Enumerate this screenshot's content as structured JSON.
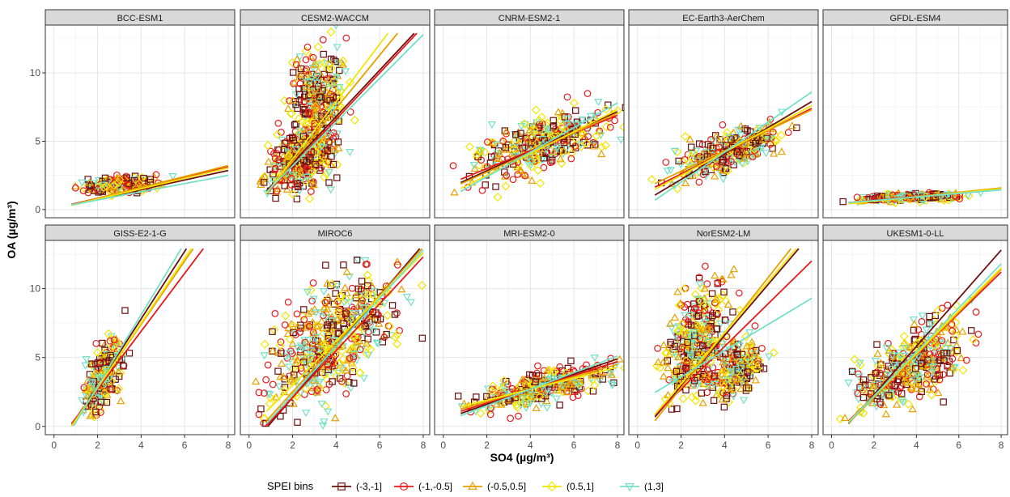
{
  "chart_data": {
    "type": "scatter",
    "facet_titles": [
      "BCC-ESM1",
      "CESM2-WACCM",
      "CNRM-ESM2-1",
      "EC-Earth3-AerChem",
      "GFDL-ESM4",
      "GISS-E2-1-G",
      "MIROC6",
      "MRI-ESM2-0",
      "NorESM2-LM",
      "UKESM1-0-LL"
    ],
    "xlabel": "SO4 (µg/m³)",
    "ylabel": "OA (µg/m³)",
    "xlim": [
      -0.4,
      8.3
    ],
    "xticks": [
      0,
      2,
      4,
      6,
      8
    ],
    "ylim": [
      -0.6,
      13.5
    ],
    "yticks": [
      0,
      5,
      10
    ],
    "grid": true,
    "legend": {
      "title": "SPEI bins",
      "position": "bottom",
      "entries": [
        {
          "label": "(-3,-1]",
          "color": "#6b0f0f",
          "shape": "square"
        },
        {
          "label": "(-1,-0.5]",
          "color": "#e8181c",
          "shape": "circle"
        },
        {
          "label": "(-0.5,0.5]",
          "color": "#e6a100",
          "shape": "triangle"
        },
        {
          "label": "(0.5,1]",
          "color": "#f3e600",
          "shape": "diamond"
        },
        {
          "label": "(1,3]",
          "color": "#74e0c8",
          "shape": "triangle-down"
        }
      ]
    },
    "panels": [
      {
        "model": "BCC-ESM1",
        "clusters": [
          {
            "cx": 2.9,
            "cy": 1.8,
            "rx": 1.6,
            "ry": 0.65,
            "slope": 0.15
          }
        ],
        "fits": [
          [
            0.06,
            0.35
          ],
          [
            0.07,
            0.38
          ],
          [
            0.02,
            0.4
          ],
          [
            0.0,
            0.38
          ],
          [
            0.1,
            0.3
          ]
        ]
      },
      {
        "model": "CESM2-WACCM",
        "clusters": [
          {
            "cx": 3.1,
            "cy": 7.3,
            "rx": 1.1,
            "ry": 5.5,
            "slope": 0.8
          },
          {
            "cx": 2.3,
            "cy": 3.5,
            "rx": 1.4,
            "ry": 2.2,
            "slope": 0.5
          }
        ],
        "fits": [
          [
            0.0,
            1.7
          ],
          [
            -0.2,
            1.7
          ],
          [
            -0.4,
            1.95
          ],
          [
            -0.5,
            2.1
          ],
          [
            0.0,
            1.6
          ]
        ]
      },
      {
        "model": "CNRM-ESM2-1",
        "clusters": [
          {
            "cx": 4.6,
            "cy": 4.8,
            "rx": 3.0,
            "ry": 2.3,
            "slope": 0.45
          }
        ],
        "fits": [
          [
            1.4,
            0.72
          ],
          [
            1.7,
            0.65
          ],
          [
            1.3,
            0.72
          ],
          [
            0.9,
            0.8
          ],
          [
            0.6,
            0.9
          ]
        ]
      },
      {
        "model": "EC-Earth3-AerChem",
        "clusters": [
          {
            "cx": 4.2,
            "cy": 4.3,
            "rx": 2.4,
            "ry": 1.6,
            "slope": 0.5
          }
        ],
        "fits": [
          [
            0.3,
            0.95
          ],
          [
            1.0,
            0.8
          ],
          [
            1.3,
            0.75
          ],
          [
            0.8,
            0.85
          ],
          [
            -0.2,
            1.1
          ]
        ]
      },
      {
        "model": "GFDL-ESM4",
        "clusters": [
          {
            "cx": 3.6,
            "cy": 0.9,
            "rx": 2.2,
            "ry": 0.3,
            "slope": 0.05
          }
        ],
        "fits": [
          [
            0.35,
            0.15
          ],
          [
            0.4,
            0.14
          ],
          [
            0.3,
            0.16
          ],
          [
            0.32,
            0.15
          ],
          [
            0.4,
            0.13
          ]
        ]
      },
      {
        "model": "GISS-E2-1-G",
        "clusters": [
          {
            "cx": 2.2,
            "cy": 3.6,
            "rx": 0.8,
            "ry": 2.6,
            "slope": 1.4
          }
        ],
        "fits": [
          [
            -2.0,
            2.45
          ],
          [
            -1.5,
            2.1
          ],
          [
            -1.8,
            2.3
          ],
          [
            -1.9,
            2.35
          ],
          [
            -2.3,
            2.6
          ]
        ]
      },
      {
        "model": "MIROC6",
        "clusters": [
          {
            "cx": 3.8,
            "cy": 6.2,
            "rx": 2.6,
            "ry": 4.5,
            "slope": 0.9
          }
        ],
        "fits": [
          [
            -1.6,
            1.85
          ],
          [
            -1.3,
            1.7
          ],
          [
            -1.0,
            1.75
          ],
          [
            -0.2,
            1.6
          ],
          [
            -1.2,
            1.75
          ]
        ]
      },
      {
        "model": "MRI-ESM2-0",
        "clusters": [
          {
            "cx": 4.8,
            "cy": 3.0,
            "rx": 3.0,
            "ry": 1.4,
            "slope": 0.4
          }
        ],
        "fits": [
          [
            0.5,
            0.55
          ],
          [
            0.7,
            0.5
          ],
          [
            0.9,
            0.45
          ],
          [
            1.1,
            0.4
          ],
          [
            0.3,
            0.6
          ]
        ]
      },
      {
        "model": "NorESM2-LM",
        "clusters": [
          {
            "cx": 2.7,
            "cy": 6.2,
            "rx": 1.3,
            "ry": 4.3,
            "slope": 1.0
          },
          {
            "cx": 4.5,
            "cy": 4.2,
            "rx": 1.1,
            "ry": 2.0,
            "slope": 0.6
          }
        ],
        "fits": [
          [
            -0.8,
            1.85
          ],
          [
            -0.4,
            1.55
          ],
          [
            -1.2,
            2.0
          ],
          [
            -0.6,
            1.85
          ],
          [
            1.7,
            0.95
          ]
        ]
      },
      {
        "model": "UKESM1-0-LL",
        "clusters": [
          {
            "cx": 3.7,
            "cy": 4.3,
            "rx": 2.4,
            "ry": 3.0,
            "slope": 0.8
          }
        ],
        "fits": [
          [
            -1.2,
            1.75
          ],
          [
            -0.8,
            1.5
          ],
          [
            -1.0,
            1.55
          ],
          [
            -0.9,
            1.55
          ],
          [
            -1.0,
            1.6
          ]
        ]
      }
    ]
  }
}
